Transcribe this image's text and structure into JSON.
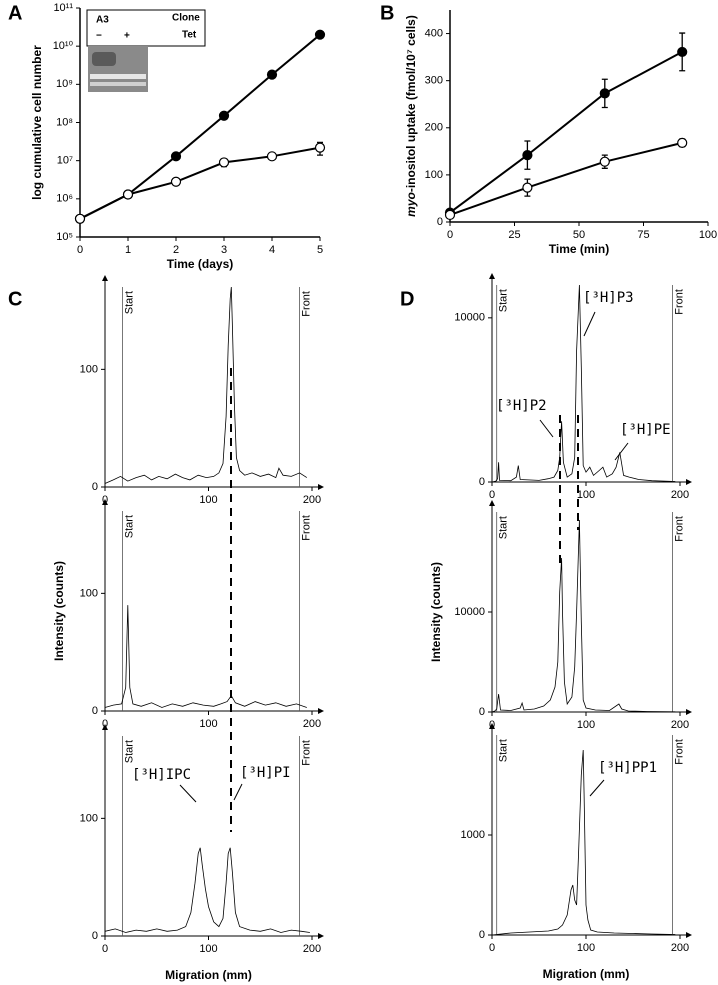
{
  "chart_data": [
    {
      "type": "line",
      "panel": "A",
      "x_label": "Time (days)",
      "y_label": "log cumulative cell number",
      "log": true,
      "x": [
        0,
        1,
        2,
        3,
        4,
        5
      ],
      "xlim": [
        0,
        5
      ],
      "xticks": [
        0,
        1,
        2,
        3,
        4,
        5
      ],
      "ylim": [
        100000,
        100000000000
      ],
      "yticks": [
        {
          "value": 100000,
          "label": "10⁵"
        },
        {
          "value": 1000000,
          "label": "10⁶"
        },
        {
          "value": 10000000,
          "label": "10⁷"
        },
        {
          "value": 100000000,
          "label": "10⁸"
        },
        {
          "value": 1000000000,
          "label": "10⁹"
        },
        {
          "value": 10000000000,
          "label": "10¹⁰"
        },
        {
          "value": 100000000000,
          "label": "10¹¹"
        }
      ],
      "series": [
        {
          "color": "#000000",
          "values": [
            300000,
            1300000,
            13000000,
            150000000,
            1800000000,
            20000000000
          ]
        },
        {
          "color": "#ffffff",
          "values": [
            300000,
            1300000,
            2800000,
            9000000,
            13000000,
            22000000
          ],
          "errors": [
            null,
            null,
            null,
            2000000,
            null,
            8000000
          ]
        }
      ],
      "inset": [
        "A3",
        "Clone",
        "−",
        "+",
        "Tet"
      ]
    },
    {
      "type": "line",
      "panel": "B",
      "x_label": "Time (min)",
      "y_label": [
        "myo",
        "-inositol uptake (fmol/10⁷ cells)"
      ],
      "x": [
        0,
        30,
        60,
        90
      ],
      "xlim": [
        0,
        100
      ],
      "xticks": [
        0,
        25,
        50,
        75,
        100
      ],
      "ylim": [
        0,
        450
      ],
      "yticks": [
        0,
        100,
        200,
        300,
        400
      ],
      "series": [
        {
          "color": "#000000",
          "values": [
            20,
            142,
            273,
            361
          ],
          "errors": [
            null,
            30,
            30,
            40
          ]
        },
        {
          "color": "#ffffff",
          "values": [
            15,
            73,
            128,
            168
          ],
          "errors": [
            null,
            18,
            14,
            8
          ]
        }
      ]
    },
    {
      "type": "trace",
      "panel": "C",
      "x": [
        0,
        8,
        15,
        22,
        30,
        38,
        45,
        52,
        60,
        68,
        75,
        82,
        90,
        98,
        105,
        110,
        114,
        117,
        119,
        121,
        122,
        123,
        125,
        127,
        130,
        135,
        142,
        150,
        158,
        165,
        168,
        172,
        180,
        188,
        195
      ],
      "xlim": [
        0,
        200
      ],
      "xticks": [
        0,
        100,
        200
      ],
      "ylim": [
        0,
        170
      ],
      "yticks": [
        0,
        100
      ],
      "markers": [
        {
          "label": "Start",
          "x": 17
        },
        {
          "label": "Front",
          "x": 188
        }
      ],
      "series": [
        {
          "values": [
            3,
            6,
            9,
            5,
            8,
            10,
            6,
            9,
            7,
            11,
            8,
            6,
            10,
            8,
            9,
            12,
            20,
            60,
            120,
            160,
            170,
            140,
            70,
            25,
            14,
            10,
            12,
            9,
            11,
            8,
            16,
            10,
            9,
            12,
            8
          ]
        }
      ]
    },
    {
      "type": "trace",
      "y_label": "Intensity (counts)",
      "x": [
        0,
        8,
        16,
        20,
        22,
        24,
        27,
        35,
        45,
        55,
        65,
        75,
        85,
        95,
        105,
        112,
        118,
        122,
        126,
        135,
        145,
        155,
        165,
        175,
        185,
        195
      ],
      "xlim": [
        0,
        200
      ],
      "xticks": [
        0,
        100,
        200
      ],
      "ylim": [
        0,
        170
      ],
      "yticks": [
        0,
        100
      ],
      "markers": [
        {
          "label": "Start",
          "x": 17
        },
        {
          "label": "Front",
          "x": 188
        }
      ],
      "series": [
        {
          "values": [
            3,
            5,
            6,
            20,
            90,
            20,
            6,
            4,
            7,
            3,
            6,
            4,
            7,
            5,
            4,
            6,
            8,
            13,
            7,
            4,
            8,
            5,
            7,
            4,
            6,
            3
          ]
        }
      ]
    },
    {
      "type": "trace",
      "x_label": "Migration (mm)",
      "x": [
        0,
        10,
        20,
        30,
        40,
        50,
        60,
        70,
        78,
        83,
        87,
        90,
        92,
        94,
        97,
        100,
        105,
        110,
        114,
        117,
        119,
        121,
        123,
        126,
        130,
        140,
        150,
        160,
        170,
        180,
        190,
        198
      ],
      "xlim": [
        0,
        200
      ],
      "xticks": [
        0,
        100,
        200
      ],
      "ylim": [
        0,
        170
      ],
      "yticks": [
        0,
        100
      ],
      "markers": [
        {
          "label": "Start",
          "x": 17
        },
        {
          "label": "Front",
          "x": 188
        }
      ],
      "series": [
        {
          "values": [
            4,
            6,
            3,
            5,
            4,
            6,
            4,
            5,
            8,
            20,
            45,
            70,
            75,
            60,
            40,
            25,
            12,
            8,
            15,
            45,
            70,
            75,
            55,
            20,
            8,
            5,
            4,
            6,
            3,
            5,
            4,
            3
          ]
        }
      ],
      "annotations": [
        "[³H]IPC",
        "[³H]PI"
      ]
    },
    {
      "type": "trace",
      "panel": "D",
      "x": [
        0,
        4,
        6,
        7,
        8,
        20,
        26,
        28,
        30,
        50,
        60,
        66,
        70,
        72,
        74,
        76,
        80,
        85,
        88,
        90,
        93,
        95,
        97,
        100,
        104,
        108,
        114,
        118,
        122,
        128,
        132,
        136,
        140,
        146,
        156,
        170,
        195
      ],
      "xlim": [
        0,
        200
      ],
      "xticks": [
        0,
        100,
        200
      ],
      "ylim": [
        0,
        12000
      ],
      "yticks": [
        0,
        10000
      ],
      "markers": [
        {
          "label": "Start",
          "x": 5
        },
        {
          "label": "Front",
          "x": 192
        }
      ],
      "series": [
        {
          "values": [
            0,
            50,
            200,
            1200,
            100,
            80,
            300,
            1000,
            150,
            100,
            200,
            300,
            700,
            1500,
            3700,
            1200,
            300,
            500,
            1500,
            8000,
            12000,
            7000,
            1000,
            600,
            900,
            400,
            700,
            900,
            300,
            500,
            900,
            1800,
            400,
            300,
            150,
            80,
            30
          ]
        }
      ],
      "annotations": [
        "[³H]P3",
        "[³H]P2",
        "[³H]PE"
      ]
    },
    {
      "type": "trace",
      "y_label": "Intensity (counts)",
      "x": [
        0,
        3,
        5,
        7,
        9,
        20,
        30,
        32,
        34,
        45,
        55,
        62,
        67,
        70,
        72,
        74,
        75,
        77,
        80,
        85,
        88,
        90,
        93,
        95,
        97,
        100,
        110,
        125,
        135,
        138,
        145,
        165,
        195
      ],
      "xlim": [
        0,
        200
      ],
      "xticks": [
        0,
        100,
        200
      ],
      "ylim": [
        0,
        20000
      ],
      "yticks": [
        0,
        10000
      ],
      "markers": [
        {
          "label": "Start",
          "x": 5
        },
        {
          "label": "Front",
          "x": 192
        }
      ],
      "series": [
        {
          "values": [
            0,
            100,
            300,
            1800,
            200,
            150,
            400,
            900,
            200,
            300,
            600,
            1200,
            2500,
            5000,
            12000,
            15400,
            10000,
            3000,
            800,
            1500,
            4500,
            10000,
            19200,
            9000,
            1200,
            400,
            200,
            150,
            800,
            300,
            100,
            50,
            20
          ]
        }
      ]
    },
    {
      "type": "trace",
      "x_label": "Migration (mm)",
      "x": [
        0,
        20,
        40,
        60,
        70,
        75,
        80,
        84,
        86,
        88,
        90,
        92,
        95,
        97,
        98,
        100,
        102,
        105,
        112,
        130,
        150,
        170,
        195
      ],
      "xlim": [
        0,
        200
      ],
      "xticks": [
        0,
        100,
        200
      ],
      "ylim": [
        0,
        2000
      ],
      "yticks": [
        0,
        1000
      ],
      "markers": [
        {
          "label": "Start",
          "x": 5
        },
        {
          "label": "Front",
          "x": 192
        }
      ],
      "series": [
        {
          "values": [
            0,
            20,
            30,
            40,
            60,
            100,
            200,
            450,
            500,
            350,
            300,
            800,
            1600,
            1850,
            1400,
            300,
            150,
            50,
            30,
            20,
            15,
            10,
            5
          ]
        }
      ],
      "annotations": [
        "[³H]PP1"
      ]
    }
  ]
}
